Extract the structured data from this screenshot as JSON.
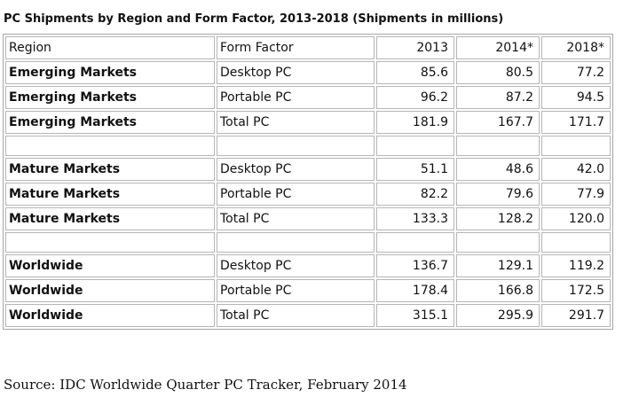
{
  "title": "PC Shipments by Region and Form Factor, 2013-2018 (Shipments in millions)",
  "table": {
    "headers": [
      "Region",
      "Form Factor",
      "2013",
      "2014*",
      "2018*"
    ],
    "rows": [
      [
        "Emerging Markets",
        "Desktop PC",
        "85.6",
        "80.5",
        "77.2"
      ],
      [
        "Emerging Markets",
        "Portable PC",
        "96.2",
        "87.2",
        "94.5"
      ],
      [
        "Emerging Markets",
        "Total PC",
        "181.9",
        "167.7",
        "171.7"
      ],
      [
        "",
        "",
        "",
        "",
        ""
      ],
      [
        "Mature Markets",
        "Desktop PC",
        "51.1",
        "48.6",
        "42.0"
      ],
      [
        "Mature Markets",
        "Portable PC",
        "82.2",
        "79.6",
        "77.9"
      ],
      [
        "Mature Markets",
        "Total PC",
        "133.3",
        "128.2",
        "120.0"
      ],
      [
        "",
        "",
        "",
        "",
        ""
      ],
      [
        "Worldwide",
        "Desktop PC",
        "136.7",
        "129.1",
        "119.2"
      ],
      [
        "Worldwide",
        "Portable PC",
        "178.4",
        "166.8",
        "172.5"
      ],
      [
        "Worldwide",
        "Total PC",
        "315.1",
        "295.9",
        "291.7"
      ]
    ]
  },
  "source": "Source:  IDC Worldwide Quarter PC Tracker, February 2014"
}
